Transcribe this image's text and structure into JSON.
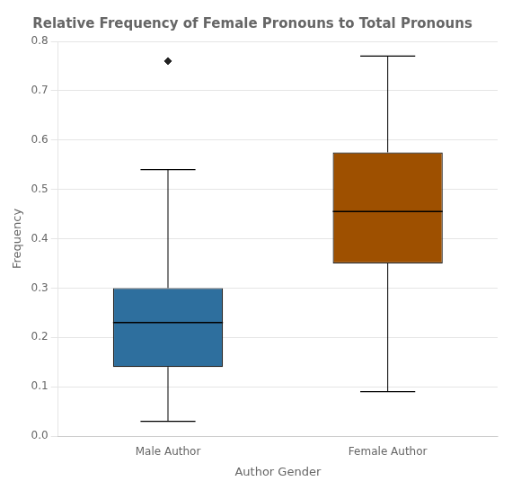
{
  "chart_data": {
    "type": "box",
    "title": "Relative Frequency of Female Pronouns to Total Pronouns",
    "xlabel": "Author Gender",
    "ylabel": "Frequency",
    "categories": [
      "Male Author",
      "Female Author"
    ],
    "boxes": [
      {
        "whisker_low": 0.03,
        "q1": 0.14,
        "median": 0.23,
        "q3": 0.3,
        "whisker_high": 0.54,
        "fliers": [
          0.76
        ]
      },
      {
        "whisker_low": 0.09,
        "q1": 0.35,
        "median": 0.455,
        "q3": 0.575,
        "whisker_high": 0.77,
        "fliers": []
      }
    ],
    "colors": [
      "#2e6f9e",
      "#9e5000"
    ],
    "ylim": [
      0.0,
      0.8
    ],
    "yticks": [
      {
        "value": 0.0,
        "label": "0.0"
      },
      0.1,
      0.2,
      0.3,
      0.4,
      0.5,
      0.6,
      0.7,
      0.8
    ],
    "grid": "y"
  }
}
